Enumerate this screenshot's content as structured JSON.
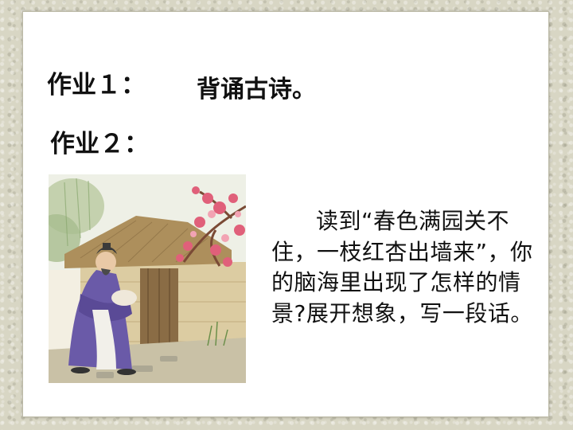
{
  "homework1": {
    "label": "作业１：",
    "text": "背诵古诗。"
  },
  "homework2": {
    "label": "作业２：",
    "text": "读到“春色满园关不住，一枝红杏出墙来”，你的脑海里出现了怎样的情景?展开想象，写一段话。"
  },
  "illustration": {
    "icon": "ancient-poet-at-garden-gate-illustration",
    "colors": {
      "robe": "#6a5aa8",
      "blossom": "#e0607a",
      "roof": "#a88a5a",
      "wall": "#d9c9a0"
    }
  }
}
